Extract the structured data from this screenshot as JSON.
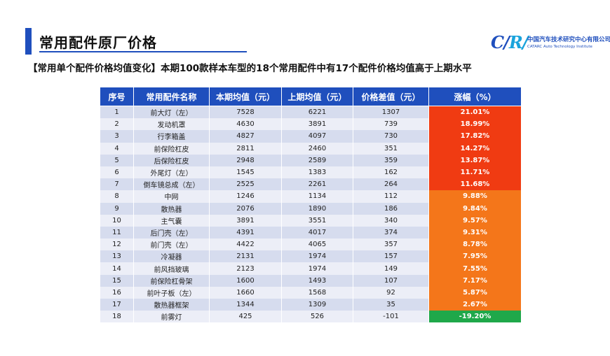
{
  "header": {
    "title": "常用配件原厂价格",
    "subtitle": "【常用单个配件价格均值变化】本期100款样本车型的18个常用配件中有17个配件价格均值高于上期水平"
  },
  "logo": {
    "mark_left": "C/",
    "mark_right": "R/",
    "org_cn": "中国汽车技术研究中心有限公司",
    "org_en": "CATARC Auto Technology Institute"
  },
  "table": {
    "headers": [
      "序号",
      "常用配件名称",
      "本期均值（元）",
      "上期均值（元）",
      "价格差值（元）",
      "涨幅（%）"
    ],
    "rows": [
      {
        "no": "1",
        "name": "前大灯（左）",
        "current": "7528",
        "previous": "6221",
        "diff": "1307",
        "pct": "21.01%",
        "color": "#f03b12"
      },
      {
        "no": "2",
        "name": "发动机罩",
        "current": "4630",
        "previous": "3891",
        "diff": "739",
        "pct": "18.99%",
        "color": "#f03b12"
      },
      {
        "no": "3",
        "name": "行李箱盖",
        "current": "4827",
        "previous": "4097",
        "diff": "730",
        "pct": "17.82%",
        "color": "#f03b12"
      },
      {
        "no": "4",
        "name": "前保险杠皮",
        "current": "2811",
        "previous": "2460",
        "diff": "351",
        "pct": "14.27%",
        "color": "#f03b12"
      },
      {
        "no": "5",
        "name": "后保险杠皮",
        "current": "2948",
        "previous": "2589",
        "diff": "359",
        "pct": "13.87%",
        "color": "#f03b12"
      },
      {
        "no": "6",
        "name": "外尾灯（左）",
        "current": "1545",
        "previous": "1383",
        "diff": "162",
        "pct": "11.71%",
        "color": "#f03b12"
      },
      {
        "no": "7",
        "name": "倒车镜总成（左）",
        "current": "2525",
        "previous": "2261",
        "diff": "264",
        "pct": "11.68%",
        "color": "#f03b12"
      },
      {
        "no": "8",
        "name": "中网",
        "current": "1246",
        "previous": "1134",
        "diff": "112",
        "pct": "9.88%",
        "color": "#f4761a"
      },
      {
        "no": "9",
        "name": "散热器",
        "current": "2076",
        "previous": "1890",
        "diff": "186",
        "pct": "9.84%",
        "color": "#f4761a"
      },
      {
        "no": "10",
        "name": "主气囊",
        "current": "3891",
        "previous": "3551",
        "diff": "340",
        "pct": "9.57%",
        "color": "#f4761a"
      },
      {
        "no": "11",
        "name": "后门壳（左）",
        "current": "4391",
        "previous": "4017",
        "diff": "374",
        "pct": "9.31%",
        "color": "#f4761a"
      },
      {
        "no": "12",
        "name": "前门壳（左）",
        "current": "4422",
        "previous": "4065",
        "diff": "357",
        "pct": "8.78%",
        "color": "#f4761a"
      },
      {
        "no": "13",
        "name": "冷凝器",
        "current": "2131",
        "previous": "1974",
        "diff": "157",
        "pct": "7.95%",
        "color": "#f4761a"
      },
      {
        "no": "14",
        "name": "前风挡玻璃",
        "current": "2123",
        "previous": "1974",
        "diff": "149",
        "pct": "7.55%",
        "color": "#f4761a"
      },
      {
        "no": "15",
        "name": "前保险杠骨架",
        "current": "1600",
        "previous": "1493",
        "diff": "107",
        "pct": "7.17%",
        "color": "#f4761a"
      },
      {
        "no": "16",
        "name": "前叶子板（左）",
        "current": "1660",
        "previous": "1568",
        "diff": "92",
        "pct": "5.87%",
        "color": "#f4761a"
      },
      {
        "no": "17",
        "name": "散热器框架",
        "current": "1344",
        "previous": "1309",
        "diff": "35",
        "pct": "2.67%",
        "color": "#f4761a"
      },
      {
        "no": "18",
        "name": "前雾灯",
        "current": "425",
        "previous": "526",
        "diff": "-101",
        "pct": "-19.20%",
        "color": "#1fa84a"
      }
    ]
  }
}
